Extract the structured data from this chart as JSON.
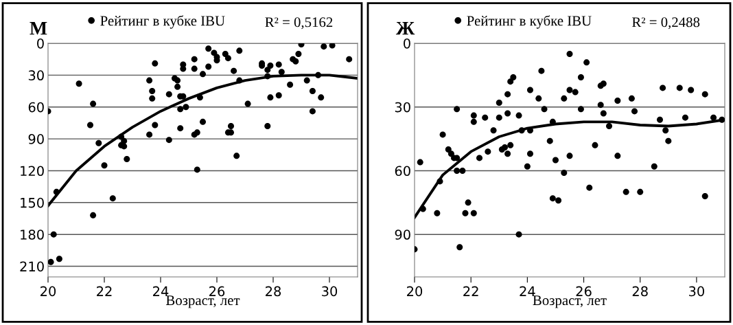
{
  "chart_data": [
    {
      "type": "scatter",
      "title": "М",
      "xlabel": "Возраст, лет",
      "xlim": [
        20,
        31
      ],
      "xticks": [
        20,
        22,
        24,
        26,
        28,
        30
      ],
      "ylim": [
        220,
        0
      ],
      "yticks": [
        0,
        30,
        60,
        90,
        120,
        150,
        180,
        210
      ],
      "grid": "y",
      "legend": "top",
      "annotations": [
        "R² = 0,5162"
      ],
      "series": [
        {
          "name": "Рейтинг в кубке IBU",
          "color": "#000000",
          "marker": "circle",
          "x": [
            20.0,
            20.1,
            20.2,
            20.3,
            20.4,
            21.1,
            21.5,
            21.6,
            21.6,
            21.8,
            22.0,
            22.3,
            22.6,
            22.6,
            22.7,
            22.7,
            22.8,
            23.6,
            23.7,
            23.7,
            23.6,
            23.8,
            23.8,
            24.3,
            24.3,
            24.5,
            24.6,
            24.6,
            24.7,
            24.8,
            24.7,
            24.9,
            24.7,
            24.8,
            24.8,
            25.2,
            25.2,
            25.2,
            25.3,
            25.3,
            25.4,
            25.5,
            25.5,
            25.7,
            25.7,
            25.9,
            26.0,
            26.0,
            26.3,
            26.4,
            26.4,
            26.5,
            26.5,
            26.6,
            26.7,
            26.8,
            26.8,
            27.1,
            27.6,
            27.6,
            27.8,
            27.8,
            27.9,
            27.8,
            27.9,
            28.2,
            28.2,
            28.3,
            28.6,
            28.7,
            28.8,
            28.9,
            29.0,
            29.2,
            29.4,
            29.4,
            29.6,
            29.7,
            29.8,
            30.1,
            30.7
          ],
          "values": [
            64,
            206,
            180,
            140,
            203,
            38,
            77,
            57,
            162,
            94,
            115,
            146,
            88,
            96,
            92,
            97,
            109,
            35,
            45,
            52,
            86,
            77,
            19,
            48,
            91,
            33,
            35,
            41,
            50,
            50,
            62,
            60,
            80,
            20,
            24,
            15,
            24,
            86,
            84,
            119,
            51,
            74,
            29,
            22,
            5,
            9,
            13,
            16,
            10,
            14,
            84,
            78,
            84,
            26,
            106,
            7,
            35,
            57,
            19,
            21,
            78,
            25,
            21,
            31,
            51,
            49,
            20,
            27,
            39,
            15,
            17,
            10,
            1,
            35,
            45,
            64,
            30,
            51,
            3,
            2,
            15
          ]
        },
        {
          "color": "#000000",
          "type": "line",
          "x": [
            20,
            21,
            22,
            23,
            24,
            25,
            26,
            27,
            28,
            29,
            30,
            31
          ],
          "values": [
            153,
            120,
            97,
            79,
            64,
            52,
            42,
            35,
            31,
            30,
            30,
            33
          ]
        }
      ]
    },
    {
      "type": "scatter",
      "title": "Ж",
      "xlabel": "Возраст, лет",
      "xlim": [
        20,
        31
      ],
      "xticks": [
        20,
        22,
        24,
        26,
        28,
        30
      ],
      "ylim": [
        110,
        0
      ],
      "yticks": [
        0,
        30,
        60,
        90
      ],
      "grid": "y",
      "legend": "top",
      "annotations": [
        "R² = 0,2488"
      ],
      "series": [
        {
          "name": "Рейтинг в кубке IBU",
          "color": "#000000",
          "marker": "circle",
          "x": [
            20.0,
            20.2,
            20.3,
            20.8,
            20.9,
            21.0,
            21.2,
            21.3,
            21.4,
            21.5,
            21.5,
            21.5,
            21.7,
            21.6,
            21.8,
            21.9,
            22.1,
            22.1,
            22.1,
            22.3,
            22.5,
            22.6,
            22.8,
            23.0,
            23.0,
            23.1,
            23.2,
            23.3,
            23.4,
            23.3,
            23.3,
            23.4,
            23.5,
            23.7,
            23.7,
            23.8,
            24.0,
            24.1,
            24.1,
            24.1,
            24.4,
            24.5,
            24.6,
            24.8,
            24.9,
            24.9,
            25.0,
            25.1,
            25.3,
            25.3,
            25.5,
            25.5,
            25.7,
            25.5,
            25.9,
            25.9,
            26.1,
            26.2,
            26.4,
            26.6,
            26.7,
            26.6,
            26.7,
            26.9,
            27.2,
            27.2,
            27.5,
            27.7,
            27.8,
            28.0,
            28.5,
            28.7,
            28.8,
            28.9,
            29.0,
            29.4,
            29.6,
            29.8,
            30.3,
            30.3,
            30.6,
            30.9
          ],
          "values": [
            97,
            56,
            78,
            80,
            65,
            43,
            50,
            52,
            54,
            54,
            60,
            31,
            60,
            96,
            80,
            75,
            80,
            34,
            37,
            54,
            35,
            51,
            41,
            28,
            35,
            50,
            49,
            52,
            48,
            33,
            24,
            18,
            16,
            34,
            90,
            41,
            58,
            22,
            41,
            52,
            26,
            13,
            31,
            46,
            37,
            73,
            55,
            74,
            61,
            26,
            5,
            22,
            23,
            53,
            16,
            31,
            9,
            68,
            48,
            20,
            19,
            29,
            33,
            39,
            27,
            53,
            70,
            26,
            32,
            70,
            58,
            36,
            21,
            41,
            46,
            21,
            35,
            22,
            24,
            72,
            35,
            36
          ]
        },
        {
          "color": "#000000",
          "type": "line",
          "x": [
            20,
            21,
            22,
            23,
            24,
            25,
            26,
            27,
            28,
            29,
            30,
            31
          ],
          "values": [
            82,
            62,
            51,
            44,
            40,
            38,
            37,
            37,
            38.5,
            39,
            38,
            36
          ]
        }
      ]
    }
  ]
}
